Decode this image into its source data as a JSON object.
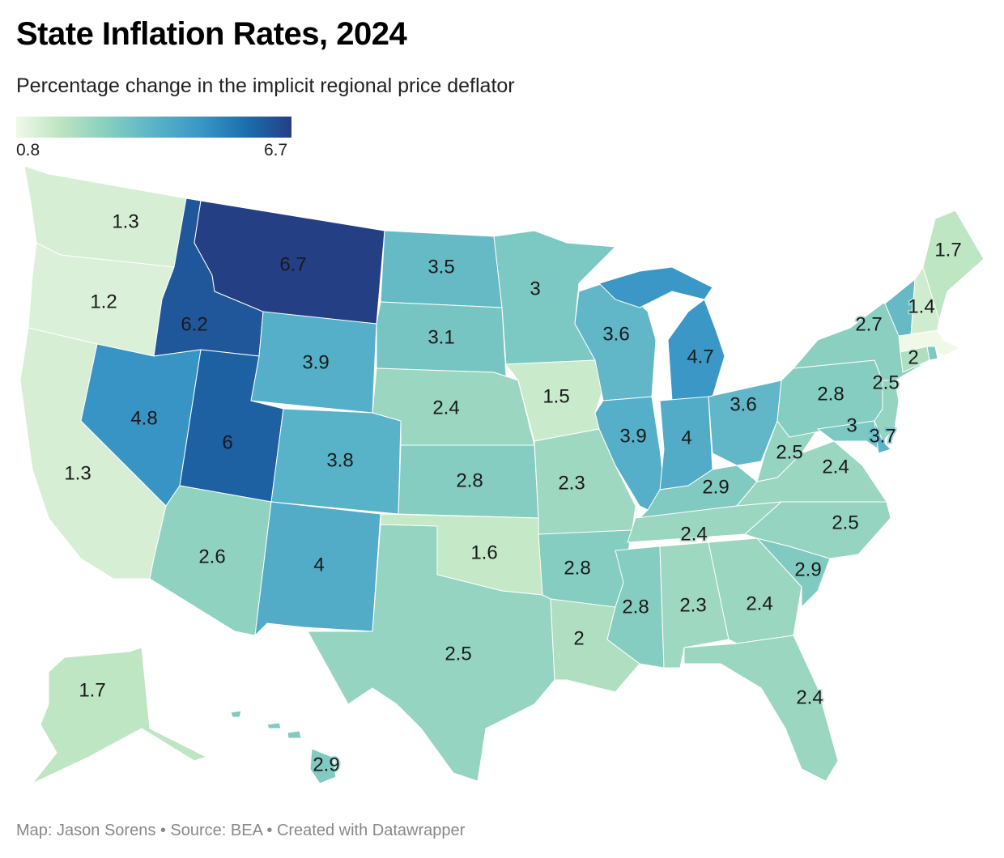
{
  "title": "State Inflation Rates, 2024",
  "subtitle": "Percentage change in the implicit regional price deflator",
  "legend": {
    "min_label": "0.8",
    "max_label": "6.7",
    "min": 0.8,
    "max": 6.7,
    "stops": [
      "#f0f9e8",
      "#bbe4c0",
      "#86cec0",
      "#5ab3c8",
      "#3a97c6",
      "#1b6fae",
      "#253f85"
    ]
  },
  "footer": "Map: Jason Sorens • Source: BEA • Created with Datawrapper",
  "chart_data": {
    "type": "choropleth",
    "title": "State Inflation Rates, 2024",
    "unit": "percent",
    "states": [
      {
        "id": "WA",
        "value": 1.3,
        "label": "1.3"
      },
      {
        "id": "OR",
        "value": 1.2,
        "label": "1.2"
      },
      {
        "id": "CA",
        "value": 1.3,
        "label": "1.3"
      },
      {
        "id": "ID",
        "value": 6.2,
        "label": "6.2"
      },
      {
        "id": "MT",
        "value": 6.7,
        "label": "6.7"
      },
      {
        "id": "WY",
        "value": 3.9,
        "label": "3.9"
      },
      {
        "id": "NV",
        "value": 4.8,
        "label": "4.8"
      },
      {
        "id": "UT",
        "value": 6.0,
        "label": "6"
      },
      {
        "id": "CO",
        "value": 3.8,
        "label": "3.8"
      },
      {
        "id": "AZ",
        "value": 2.6,
        "label": "2.6"
      },
      {
        "id": "NM",
        "value": 4.0,
        "label": "4"
      },
      {
        "id": "ND",
        "value": 3.5,
        "label": "3.5"
      },
      {
        "id": "SD",
        "value": 3.1,
        "label": "3.1"
      },
      {
        "id": "NE",
        "value": 2.4,
        "label": "2.4"
      },
      {
        "id": "KS",
        "value": 2.8,
        "label": "2.8"
      },
      {
        "id": "OK",
        "value": 1.6,
        "label": "1.6"
      },
      {
        "id": "TX",
        "value": 2.5,
        "label": "2.5"
      },
      {
        "id": "MN",
        "value": 3.0,
        "label": "3"
      },
      {
        "id": "IA",
        "value": 1.5,
        "label": "1.5"
      },
      {
        "id": "MO",
        "value": 2.3,
        "label": "2.3"
      },
      {
        "id": "AR",
        "value": 2.8,
        "label": "2.8"
      },
      {
        "id": "LA",
        "value": 2.0,
        "label": "2"
      },
      {
        "id": "WI",
        "value": 3.6,
        "label": "3.6"
      },
      {
        "id": "IL",
        "value": 3.9,
        "label": "3.9"
      },
      {
        "id": "MI",
        "value": 4.7,
        "label": "4.7"
      },
      {
        "id": "IN",
        "value": 4.0,
        "label": "4"
      },
      {
        "id": "OH",
        "value": 3.6,
        "label": "3.6"
      },
      {
        "id": "KY",
        "value": 2.9,
        "label": "2.9"
      },
      {
        "id": "TN",
        "value": 2.4,
        "label": "2.4"
      },
      {
        "id": "MS",
        "value": 2.8,
        "label": "2.8"
      },
      {
        "id": "AL",
        "value": 2.3,
        "label": "2.3"
      },
      {
        "id": "GA",
        "value": 2.4,
        "label": "2.4"
      },
      {
        "id": "FL",
        "value": 2.4,
        "label": "2.4"
      },
      {
        "id": "SC",
        "value": 2.9,
        "label": "2.9"
      },
      {
        "id": "NC",
        "value": 2.5,
        "label": "2.5"
      },
      {
        "id": "VA",
        "value": 2.4,
        "label": "2.4"
      },
      {
        "id": "WV",
        "value": 2.5,
        "label": "2.5"
      },
      {
        "id": "PA",
        "value": 2.8,
        "label": "2.8"
      },
      {
        "id": "NY",
        "value": 2.7,
        "label": "2.7"
      },
      {
        "id": "NJ",
        "value": 2.5,
        "label": "2.5"
      },
      {
        "id": "MD",
        "value": 3.0,
        "label": "3"
      },
      {
        "id": "DE",
        "value": 3.7,
        "label": "3.7"
      },
      {
        "id": "VT",
        "value": 3.5,
        "label": null
      },
      {
        "id": "NH",
        "value": 1.4,
        "label": "1.4"
      },
      {
        "id": "ME",
        "value": 1.7,
        "label": "1.7"
      },
      {
        "id": "MA",
        "value": 0.8,
        "label": null
      },
      {
        "id": "CT",
        "value": 2.0,
        "label": "2"
      },
      {
        "id": "RI",
        "value": 3.0,
        "label": null
      },
      {
        "id": "AK",
        "value": 1.7,
        "label": "1.7"
      },
      {
        "id": "HI",
        "value": 2.9,
        "label": "2.9"
      }
    ]
  }
}
